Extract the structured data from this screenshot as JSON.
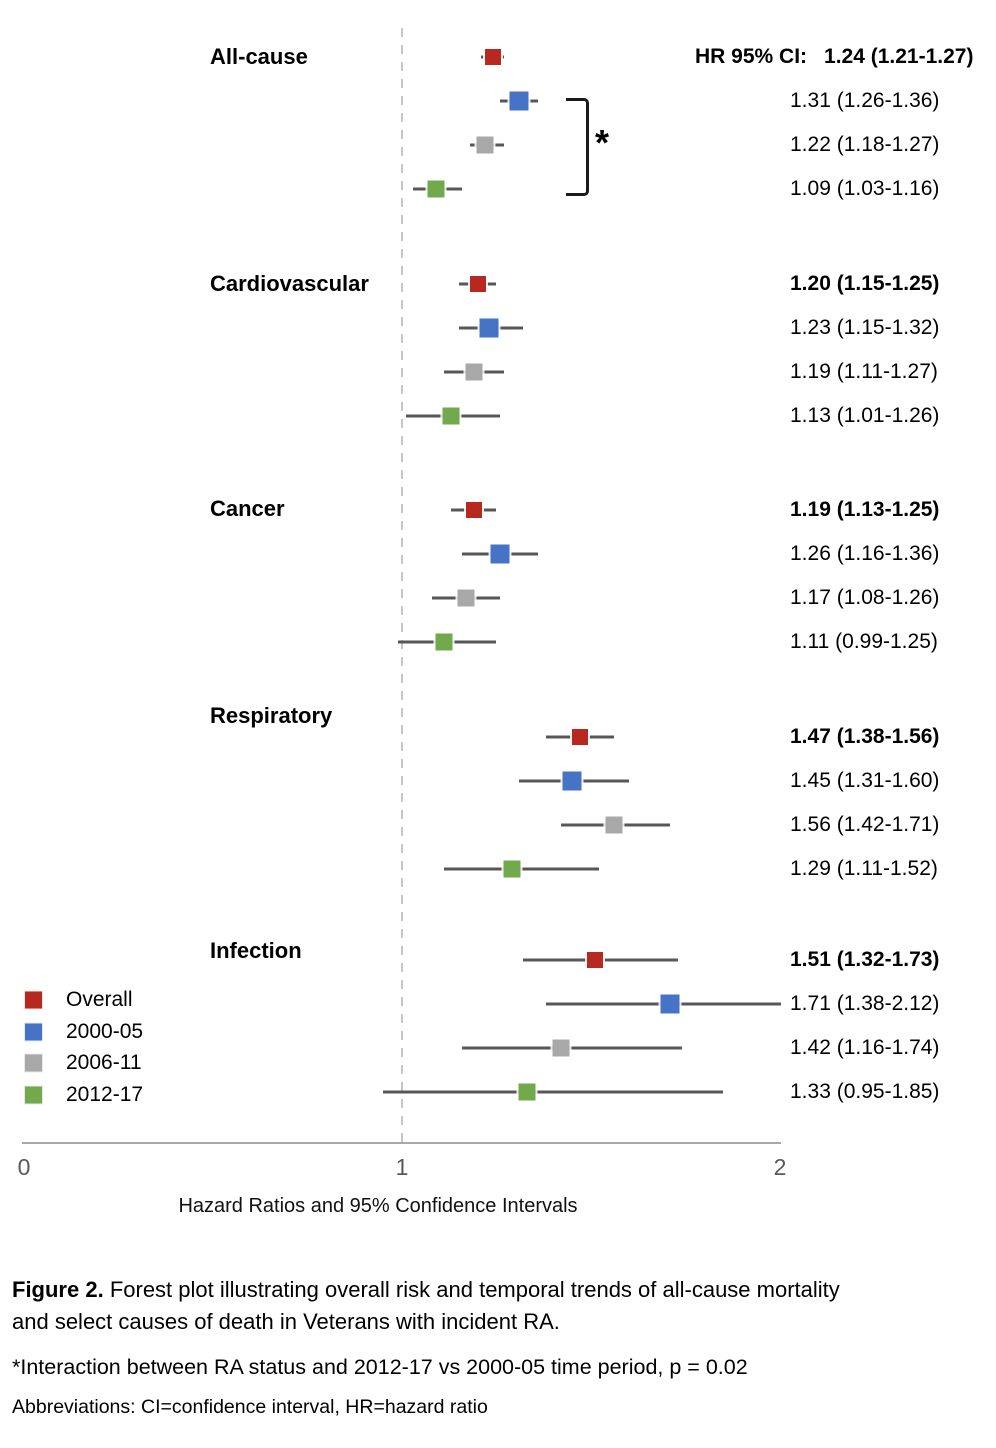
{
  "chart_data": {
    "type": "forest",
    "xlabel": "Hazard Ratios and 95% Confidence Intervals",
    "xlim": [
      0,
      2
    ],
    "x_ticks": [
      "0",
      "1",
      "2"
    ],
    "x_tick_values": [
      0,
      1,
      2
    ],
    "reference_line": 1,
    "grid": false,
    "legend_position": "bottom-left",
    "header_prefix": "HR 95% CI:",
    "series_legend": [
      {
        "name": "Overall",
        "color": "#b7281f"
      },
      {
        "name": "2000-05",
        "color": "#4673c5"
      },
      {
        "name": "2006-11",
        "color": "#a8a8a8"
      },
      {
        "name": "2012-17",
        "color": "#72a94c"
      }
    ],
    "ci_line_color": "#575757",
    "categories": [
      {
        "label": "All-cause",
        "annotation": "*",
        "rows": [
          {
            "series": "Overall",
            "hr": 1.24,
            "lo": 1.21,
            "hi": 1.27,
            "text": "1.24 (1.21-1.27)",
            "bold": true,
            "prefix": "HR 95% CI:"
          },
          {
            "series": "2000-05",
            "hr": 1.31,
            "lo": 1.26,
            "hi": 1.36,
            "text": "1.31 (1.26-1.36)",
            "bold": false
          },
          {
            "series": "2006-11",
            "hr": 1.22,
            "lo": 1.18,
            "hi": 1.27,
            "text": "1.22 (1.18-1.27)",
            "bold": false
          },
          {
            "series": "2012-17",
            "hr": 1.09,
            "lo": 1.03,
            "hi": 1.16,
            "text": "1.09 (1.03-1.16)",
            "bold": false
          }
        ]
      },
      {
        "label": "Cardiovascular",
        "annotation": "",
        "rows": [
          {
            "series": "Overall",
            "hr": 1.2,
            "lo": 1.15,
            "hi": 1.25,
            "text": "1.20 (1.15-1.25)",
            "bold": true
          },
          {
            "series": "2000-05",
            "hr": 1.23,
            "lo": 1.15,
            "hi": 1.32,
            "text": "1.23 (1.15-1.32)",
            "bold": false
          },
          {
            "series": "2006-11",
            "hr": 1.19,
            "lo": 1.11,
            "hi": 1.27,
            "text": "1.19 (1.11-1.27)",
            "bold": false
          },
          {
            "series": "2012-17",
            "hr": 1.13,
            "lo": 1.01,
            "hi": 1.26,
            "text": "1.13 (1.01-1.26)",
            "bold": false
          }
        ]
      },
      {
        "label": "Cancer",
        "annotation": "",
        "rows": [
          {
            "series": "Overall",
            "hr": 1.19,
            "lo": 1.13,
            "hi": 1.25,
            "text": "1.19 (1.13-1.25)",
            "bold": true
          },
          {
            "series": "2000-05",
            "hr": 1.26,
            "lo": 1.16,
            "hi": 1.36,
            "text": "1.26 (1.16-1.36)",
            "bold": false
          },
          {
            "series": "2006-11",
            "hr": 1.17,
            "lo": 1.08,
            "hi": 1.26,
            "text": "1.17 (1.08-1.26)",
            "bold": false
          },
          {
            "series": "2012-17",
            "hr": 1.11,
            "lo": 0.99,
            "hi": 1.25,
            "text": "1.11 (0.99-1.25)",
            "bold": false
          }
        ]
      },
      {
        "label": "Respiratory",
        "annotation": "",
        "rows": [
          {
            "series": "Overall",
            "hr": 1.47,
            "lo": 1.38,
            "hi": 1.56,
            "text": "1.47 (1.38-1.56)",
            "bold": true
          },
          {
            "series": "2000-05",
            "hr": 1.45,
            "lo": 1.31,
            "hi": 1.6,
            "text": "1.45 (1.31-1.60)",
            "bold": false
          },
          {
            "series": "2006-11",
            "hr": 1.56,
            "lo": 1.42,
            "hi": 1.71,
            "text": "1.56 (1.42-1.71)",
            "bold": false
          },
          {
            "series": "2012-17",
            "hr": 1.29,
            "lo": 1.11,
            "hi": 1.52,
            "text": "1.29 (1.11-1.52)",
            "bold": false
          }
        ]
      },
      {
        "label": "Infection",
        "annotation": "",
        "rows": [
          {
            "series": "Overall",
            "hr": 1.51,
            "lo": 1.32,
            "hi": 1.73,
            "text": "1.51 (1.32-1.73)",
            "bold": true
          },
          {
            "series": "2000-05",
            "hr": 1.71,
            "lo": 1.38,
            "hi": 2.12,
            "text": "1.71 (1.38-2.12)",
            "bold": false
          },
          {
            "series": "2006-11",
            "hr": 1.42,
            "lo": 1.16,
            "hi": 1.74,
            "text": "1.42 (1.16-1.74)",
            "bold": false
          },
          {
            "series": "2012-17",
            "hr": 1.33,
            "lo": 0.95,
            "hi": 1.85,
            "text": "1.33 (0.95-1.85)",
            "bold": false
          }
        ]
      }
    ]
  },
  "caption": {
    "figure_label": "Figure 2.",
    "line1": "Forest plot illustrating overall risk and temporal trends of all-cause mortality",
    "line2": "and select causes of death in Veterans with incident RA.",
    "footnote": "*Interaction between RA status and 2012-17 vs 2000-05 time period, p = 0.02",
    "abbreviations": "Abbreviations: CI=confidence interval, HR=hazard ratio"
  }
}
